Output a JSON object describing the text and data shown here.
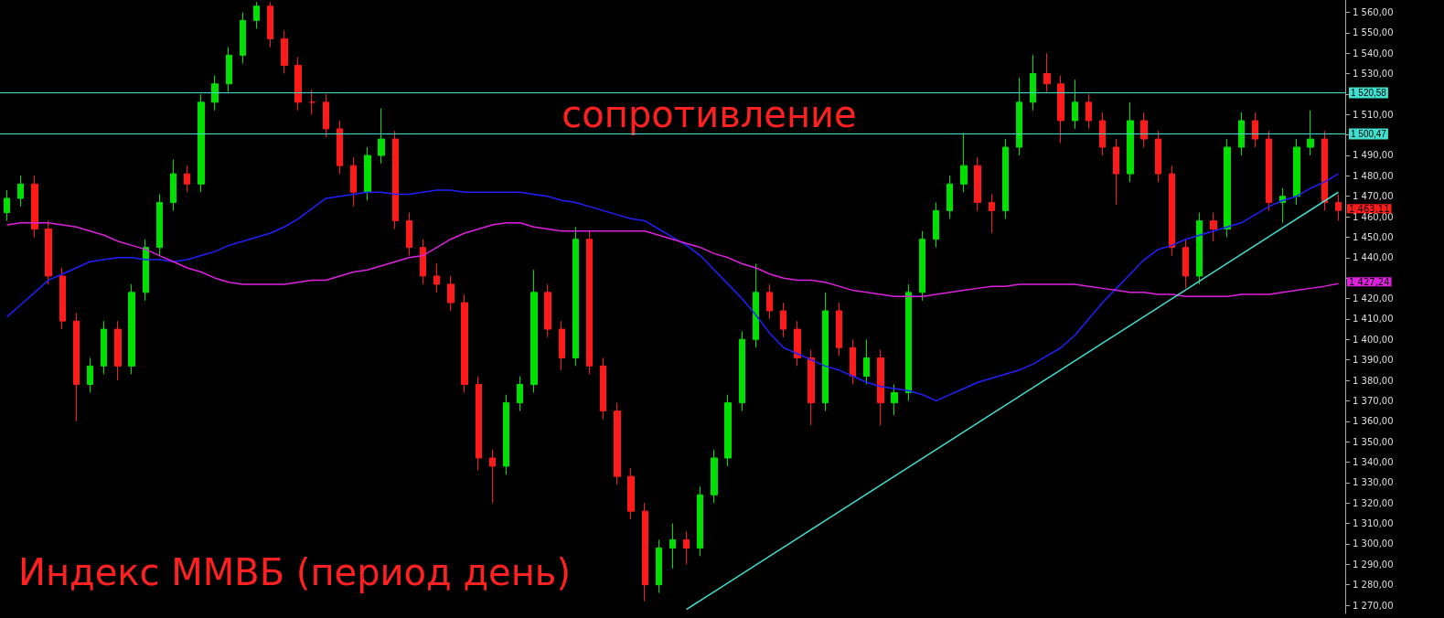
{
  "chart_data": {
    "type": "candlestick",
    "title": "Индекс ММВБ (период день)",
    "annotations": [
      "сопротивление"
    ],
    "categories": [
      null,
      null,
      null,
      null,
      null,
      null,
      null,
      null,
      null,
      null,
      null,
      null,
      null,
      null,
      null,
      null,
      null,
      null,
      null,
      null,
      null,
      null,
      null,
      null,
      null,
      null,
      null,
      null,
      null,
      null,
      null,
      null,
      null,
      null,
      null,
      null,
      null,
      null,
      null,
      null,
      null,
      null,
      null,
      null,
      null,
      null,
      null,
      null,
      null,
      null,
      null,
      null,
      null,
      null,
      null,
      null,
      null,
      null,
      null,
      null,
      null,
      null,
      null,
      null,
      null,
      null,
      null,
      null,
      null,
      null,
      null,
      null,
      null,
      null,
      null,
      null,
      null,
      null,
      null,
      null,
      null,
      null,
      null,
      null,
      null,
      null,
      null,
      null,
      null,
      null,
      null,
      null,
      null,
      null,
      null,
      null,
      null
    ],
    "ylim": [
      1266,
      1566
    ],
    "yticks": [
      {
        "value": 1270,
        "label": "1 270,00"
      },
      {
        "value": 1280,
        "label": "1 280,00"
      },
      {
        "value": 1290,
        "label": "1 290,00"
      },
      {
        "value": 1300,
        "label": "1 300,00"
      },
      {
        "value": 1310,
        "label": "1 310,00"
      },
      {
        "value": 1320,
        "label": "1 320,00"
      },
      {
        "value": 1330,
        "label": "1 330,00"
      },
      {
        "value": 1340,
        "label": "1 340,00"
      },
      {
        "value": 1350,
        "label": "1 350,00"
      },
      {
        "value": 1360,
        "label": "1 360,00"
      },
      {
        "value": 1370,
        "label": "1 370,00"
      },
      {
        "value": 1380,
        "label": "1 380,00"
      },
      {
        "value": 1390,
        "label": "1 390,00"
      },
      {
        "value": 1400,
        "label": "1 400,00"
      },
      {
        "value": 1410,
        "label": "1 410,00"
      },
      {
        "value": 1420,
        "label": "1 420,00"
      },
      {
        "value": 1430,
        "label": null
      },
      {
        "value": 1440,
        "label": "1 440,00"
      },
      {
        "value": 1450,
        "label": "1 450,00"
      },
      {
        "value": 1460,
        "label": "1 460,00"
      },
      {
        "value": 1470,
        "label": "1 470,00"
      },
      {
        "value": 1480,
        "label": "1 480,00"
      },
      {
        "value": 1490,
        "label": "1 490,00"
      },
      {
        "value": 1500,
        "label": null
      },
      {
        "value": 1510,
        "label": "1 510,00"
      },
      {
        "value": 1520,
        "label": null
      },
      {
        "value": 1530,
        "label": "1 530,00"
      },
      {
        "value": 1540,
        "label": "1 540,00"
      },
      {
        "value": 1550,
        "label": "1 550,00"
      },
      {
        "value": 1560,
        "label": "1 560,00"
      }
    ],
    "tick_labels": "y",
    "grid": false,
    "marker": "none",
    "line_style": "solid",
    "ref_lines": [
      {
        "axis": "y",
        "value": 1520.58,
        "label": "1 520,58",
        "color": "#40e0d0"
      },
      {
        "axis": "y",
        "value": 1500.47,
        "label": "1 500,47",
        "color": "#40e0d0"
      }
    ],
    "series": [
      {
        "value_labels": [
          null,
          null,
          null,
          null,
          null,
          null,
          null,
          null,
          null,
          null,
          null,
          null,
          null,
          null,
          null,
          null,
          null,
          null,
          null,
          null,
          null,
          null,
          null,
          null,
          null,
          null,
          null,
          null,
          null,
          null,
          null,
          null,
          null,
          null,
          null,
          null,
          null,
          null,
          null,
          null,
          null,
          null,
          null,
          null,
          null,
          null,
          null,
          null,
          null,
          null,
          null,
          null,
          null,
          null,
          null,
          null,
          null,
          null,
          null,
          null,
          null,
          null,
          null,
          null,
          null,
          null,
          null,
          null,
          null,
          null,
          null,
          null,
          null,
          null,
          null,
          null,
          null,
          null,
          null,
          null,
          null,
          null,
          null,
          null,
          null,
          null,
          null,
          null,
          null,
          null,
          null,
          null,
          null,
          null,
          null,
          null,
          "1 463,11"
        ],
        "ohlc": [
          [
            1462,
            1473,
            1458,
            1469
          ],
          [
            1469,
            1480,
            1465,
            1476
          ],
          [
            1476,
            1480,
            1450,
            1454
          ],
          [
            1454,
            1458,
            1427,
            1431
          ],
          [
            1431,
            1435,
            1405,
            1409
          ],
          [
            1409,
            1413,
            1360,
            1378
          ],
          [
            1378,
            1391,
            1374,
            1387
          ],
          [
            1387,
            1409,
            1383,
            1405
          ],
          [
            1405,
            1409,
            1380,
            1387
          ],
          [
            1387,
            1427,
            1383,
            1423
          ],
          [
            1423,
            1449,
            1419,
            1445
          ],
          [
            1445,
            1471,
            1441,
            1467
          ],
          [
            1467,
            1488,
            1463,
            1481
          ],
          [
            1481,
            1485,
            1472,
            1476
          ],
          [
            1476,
            1520,
            1472,
            1516
          ],
          [
            1516,
            1529,
            1512,
            1525
          ],
          [
            1525,
            1543,
            1521,
            1539
          ],
          [
            1539,
            1560,
            1535,
            1556
          ],
          [
            1556,
            1565,
            1552,
            1563
          ],
          [
            1563,
            1565,
            1543,
            1547
          ],
          [
            1547,
            1551,
            1530,
            1534
          ],
          [
            1534,
            1538,
            1512,
            1516
          ],
          [
            1516,
            1522,
            1510,
            1516
          ],
          [
            1516,
            1520,
            1499,
            1503
          ],
          [
            1503,
            1507,
            1481,
            1485
          ],
          [
            1485,
            1489,
            1465,
            1472
          ],
          [
            1472,
            1494,
            1468,
            1490
          ],
          [
            1490,
            1513,
            1486,
            1498
          ],
          [
            1498,
            1502,
            1454,
            1458
          ],
          [
            1458,
            1462,
            1441,
            1445
          ],
          [
            1445,
            1449,
            1427,
            1431
          ],
          [
            1431,
            1437,
            1423,
            1427
          ],
          [
            1427,
            1431,
            1414,
            1418
          ],
          [
            1418,
            1422,
            1374,
            1378
          ],
          [
            1378,
            1382,
            1336,
            1342
          ],
          [
            1342,
            1346,
            1320,
            1338
          ],
          [
            1338,
            1373,
            1334,
            1369
          ],
          [
            1369,
            1382,
            1365,
            1378
          ],
          [
            1378,
            1434,
            1374,
            1423
          ],
          [
            1423,
            1427,
            1401,
            1405
          ],
          [
            1405,
            1409,
            1385,
            1391
          ],
          [
            1391,
            1455,
            1387,
            1449
          ],
          [
            1449,
            1453,
            1383,
            1387
          ],
          [
            1387,
            1391,
            1361,
            1365
          ],
          [
            1365,
            1369,
            1329,
            1333
          ],
          [
            1333,
            1337,
            1312,
            1316
          ],
          [
            1316,
            1320,
            1272,
            1280
          ],
          [
            1280,
            1302,
            1276,
            1298
          ],
          [
            1298,
            1310,
            1288,
            1302
          ],
          [
            1302,
            1306,
            1290,
            1298
          ],
          [
            1298,
            1328,
            1294,
            1324
          ],
          [
            1324,
            1346,
            1320,
            1342
          ],
          [
            1342,
            1373,
            1338,
            1369
          ],
          [
            1369,
            1404,
            1365,
            1400
          ],
          [
            1400,
            1437,
            1396,
            1423
          ],
          [
            1423,
            1427,
            1410,
            1414
          ],
          [
            1414,
            1418,
            1401,
            1405
          ],
          [
            1405,
            1409,
            1387,
            1391
          ],
          [
            1391,
            1395,
            1358,
            1369
          ],
          [
            1369,
            1423,
            1365,
            1414
          ],
          [
            1414,
            1418,
            1392,
            1396
          ],
          [
            1396,
            1400,
            1378,
            1382
          ],
          [
            1382,
            1400,
            1378,
            1391
          ],
          [
            1391,
            1395,
            1358,
            1369
          ],
          [
            1369,
            1378,
            1363,
            1374
          ],
          [
            1374,
            1427,
            1370,
            1423
          ],
          [
            1423,
            1453,
            1419,
            1449
          ],
          [
            1449,
            1467,
            1445,
            1463
          ],
          [
            1463,
            1480,
            1459,
            1476
          ],
          [
            1476,
            1501,
            1472,
            1485
          ],
          [
            1485,
            1489,
            1463,
            1467
          ],
          [
            1467,
            1471,
            1452,
            1463
          ],
          [
            1463,
            1498,
            1459,
            1494
          ],
          [
            1494,
            1528,
            1490,
            1516
          ],
          [
            1516,
            1539,
            1512,
            1530
          ],
          [
            1530,
            1540,
            1521,
            1525
          ],
          [
            1525,
            1529,
            1496,
            1507
          ],
          [
            1507,
            1527,
            1503,
            1516
          ],
          [
            1516,
            1520,
            1503,
            1507
          ],
          [
            1507,
            1511,
            1490,
            1494
          ],
          [
            1494,
            1498,
            1466,
            1481
          ],
          [
            1481,
            1516,
            1477,
            1507
          ],
          [
            1507,
            1511,
            1494,
            1498
          ],
          [
            1498,
            1502,
            1477,
            1481
          ],
          [
            1481,
            1485,
            1441,
            1445
          ],
          [
            1445,
            1449,
            1425,
            1431
          ],
          [
            1431,
            1462,
            1427,
            1458
          ],
          [
            1458,
            1462,
            1448,
            1454
          ],
          [
            1454,
            1498,
            1450,
            1494
          ],
          [
            1494,
            1511,
            1490,
            1507
          ],
          [
            1507,
            1511,
            1494,
            1498
          ],
          [
            1498,
            1502,
            1463,
            1467
          ],
          [
            1467,
            1474,
            1457,
            1470
          ],
          [
            1470,
            1498,
            1466,
            1494
          ],
          [
            1494,
            1512,
            1490,
            1498
          ],
          [
            1498,
            1502,
            1463,
            1467
          ],
          [
            1467,
            1471,
            1458,
            1463.11
          ]
        ],
        "colors": [
          "#00e000",
          "#00e000",
          "#ff1a1a",
          "#ff1a1a",
          "#ff1a1a",
          "#ff1a1a",
          "#00e000",
          "#00e000",
          "#ff1a1a",
          "#00e000",
          "#00e000",
          "#00e000",
          "#00e000",
          "#ff1a1a",
          "#00e000",
          "#00e000",
          "#00e000",
          "#00e000",
          "#00e000",
          "#ff1a1a",
          "#ff1a1a",
          "#ff1a1a",
          "#ff1a1a",
          "#ff1a1a",
          "#ff1a1a",
          "#ff1a1a",
          "#00e000",
          "#00e000",
          "#ff1a1a",
          "#ff1a1a",
          "#ff1a1a",
          "#ff1a1a",
          "#ff1a1a",
          "#ff1a1a",
          "#ff1a1a",
          "#ff1a1a",
          "#00e000",
          "#00e000",
          "#00e000",
          "#ff1a1a",
          "#ff1a1a",
          "#00e000",
          "#ff1a1a",
          "#ff1a1a",
          "#ff1a1a",
          "#ff1a1a",
          "#ff1a1a",
          "#00e000",
          "#00e000",
          "#ff1a1a",
          "#00e000",
          "#00e000",
          "#00e000",
          "#00e000",
          "#00e000",
          "#ff1a1a",
          "#ff1a1a",
          "#ff1a1a",
          "#ff1a1a",
          "#00e000",
          "#ff1a1a",
          "#ff1a1a",
          "#00e000",
          "#ff1a1a",
          "#00e000",
          "#00e000",
          "#00e000",
          "#00e000",
          "#00e000",
          "#00e000",
          "#ff1a1a",
          "#ff1a1a",
          "#00e000",
          "#00e000",
          "#00e000",
          "#ff1a1a",
          "#ff1a1a",
          "#00e000",
          "#ff1a1a",
          "#ff1a1a",
          "#ff1a1a",
          "#00e000",
          "#ff1a1a",
          "#ff1a1a",
          "#ff1a1a",
          "#ff1a1a",
          "#00e000",
          "#ff1a1a",
          "#00e000",
          "#00e000",
          "#ff1a1a",
          "#ff1a1a",
          "#00e000",
          "#00e000",
          "#00e000",
          "#ff1a1a",
          "#ff1a1a"
        ]
      },
      {
        "type": "line",
        "color": "#2020ff",
        "values": [
          1411,
          1417,
          1423,
          1429,
          1432,
          1435,
          1438,
          1439,
          1440,
          1440,
          1439,
          1439,
          1438,
          1439,
          1441,
          1443,
          1446,
          1448,
          1450,
          1452,
          1455,
          1459,
          1464,
          1469,
          1470,
          1471,
          1472,
          1472,
          1471,
          1471,
          1472,
          1473,
          1473,
          1472,
          1472,
          1472,
          1472,
          1472,
          1471,
          1470,
          1468,
          1467,
          1465,
          1463,
          1461,
          1459,
          1458,
          1454,
          1450,
          1446,
          1441,
          1434,
          1427,
          1420,
          1412,
          1403,
          1396,
          1393,
          1390,
          1387,
          1385,
          1382,
          1379,
          1377,
          1376,
          1375,
          1373,
          1370,
          1373,
          1376,
          1379,
          1381,
          1383,
          1385,
          1388,
          1392,
          1396,
          1402,
          1410,
          1418,
          1425,
          1432,
          1439,
          1444,
          1446,
          1449,
          1451,
          1453,
          1455,
          1457,
          1461,
          1465,
          1468,
          1470,
          1474,
          1477,
          1481
        ]
      },
      {
        "type": "line",
        "color": "#e020e0",
        "values": [
          1456,
          1457,
          1457,
          1457,
          1456,
          1455,
          1453,
          1451,
          1448,
          1446,
          1444,
          1441,
          1438,
          1435,
          1433,
          1430,
          1428,
          1427,
          1427,
          1427,
          1427,
          1428,
          1429,
          1429,
          1431,
          1433,
          1434,
          1436,
          1438,
          1440,
          1441,
          1445,
          1449,
          1452,
          1454,
          1456,
          1457,
          1457,
          1455,
          1454,
          1453,
          1453,
          1453,
          1453,
          1453,
          1453,
          1453,
          1451,
          1449,
          1447,
          1445,
          1442,
          1440,
          1437,
          1435,
          1432,
          1430,
          1429,
          1429,
          1428,
          1426,
          1424,
          1423,
          1422,
          1421,
          1421,
          1421,
          1422,
          1423,
          1424,
          1425,
          1426,
          1426,
          1427,
          1427,
          1427,
          1427,
          1427,
          1426,
          1425,
          1424,
          1423,
          1423,
          1422,
          1422,
          1421,
          1421,
          1421,
          1421,
          1422,
          1422,
          1422,
          1423,
          1424,
          1425,
          1426,
          1427.24
        ],
        "value_labels": [
          null,
          null,
          null,
          null,
          null,
          null,
          null,
          null,
          null,
          null,
          null,
          null,
          null,
          null,
          null,
          null,
          null,
          null,
          null,
          null,
          null,
          null,
          null,
          null,
          null,
          null,
          null,
          null,
          null,
          null,
          null,
          null,
          null,
          null,
          null,
          null,
          null,
          null,
          null,
          null,
          null,
          null,
          null,
          null,
          null,
          null,
          null,
          null,
          null,
          null,
          null,
          null,
          null,
          null,
          null,
          null,
          null,
          null,
          null,
          null,
          null,
          null,
          null,
          null,
          null,
          null,
          null,
          null,
          null,
          null,
          null,
          null,
          null,
          null,
          null,
          null,
          null,
          null,
          null,
          null,
          null,
          null,
          null,
          null,
          null,
          null,
          null,
          null,
          null,
          null,
          null,
          null,
          null,
          null,
          null,
          null,
          "1 427,24"
        ]
      },
      {
        "type": "line",
        "color": "#40e0d0",
        "values": [
          null,
          null,
          null,
          null,
          null,
          null,
          null,
          null,
          null,
          null,
          null,
          null,
          null,
          null,
          null,
          null,
          null,
          null,
          null,
          null,
          null,
          null,
          null,
          null,
          null,
          null,
          null,
          null,
          null,
          null,
          null,
          null,
          null,
          null,
          null,
          null,
          null,
          null,
          null,
          null,
          null,
          null,
          null,
          null,
          null,
          null,
          null,
          null,
          null,
          1268,
          null,
          null,
          null,
          null,
          null,
          null,
          null,
          null,
          null,
          null,
          null,
          null,
          null,
          null,
          null,
          null,
          null,
          null,
          null,
          null,
          null,
          null,
          null,
          null,
          null,
          null,
          null,
          null,
          null,
          null,
          null,
          null,
          null,
          null,
          null,
          null,
          null,
          null,
          null,
          null,
          null,
          null,
          null,
          null,
          null,
          null,
          1472
        ]
      }
    ]
  }
}
